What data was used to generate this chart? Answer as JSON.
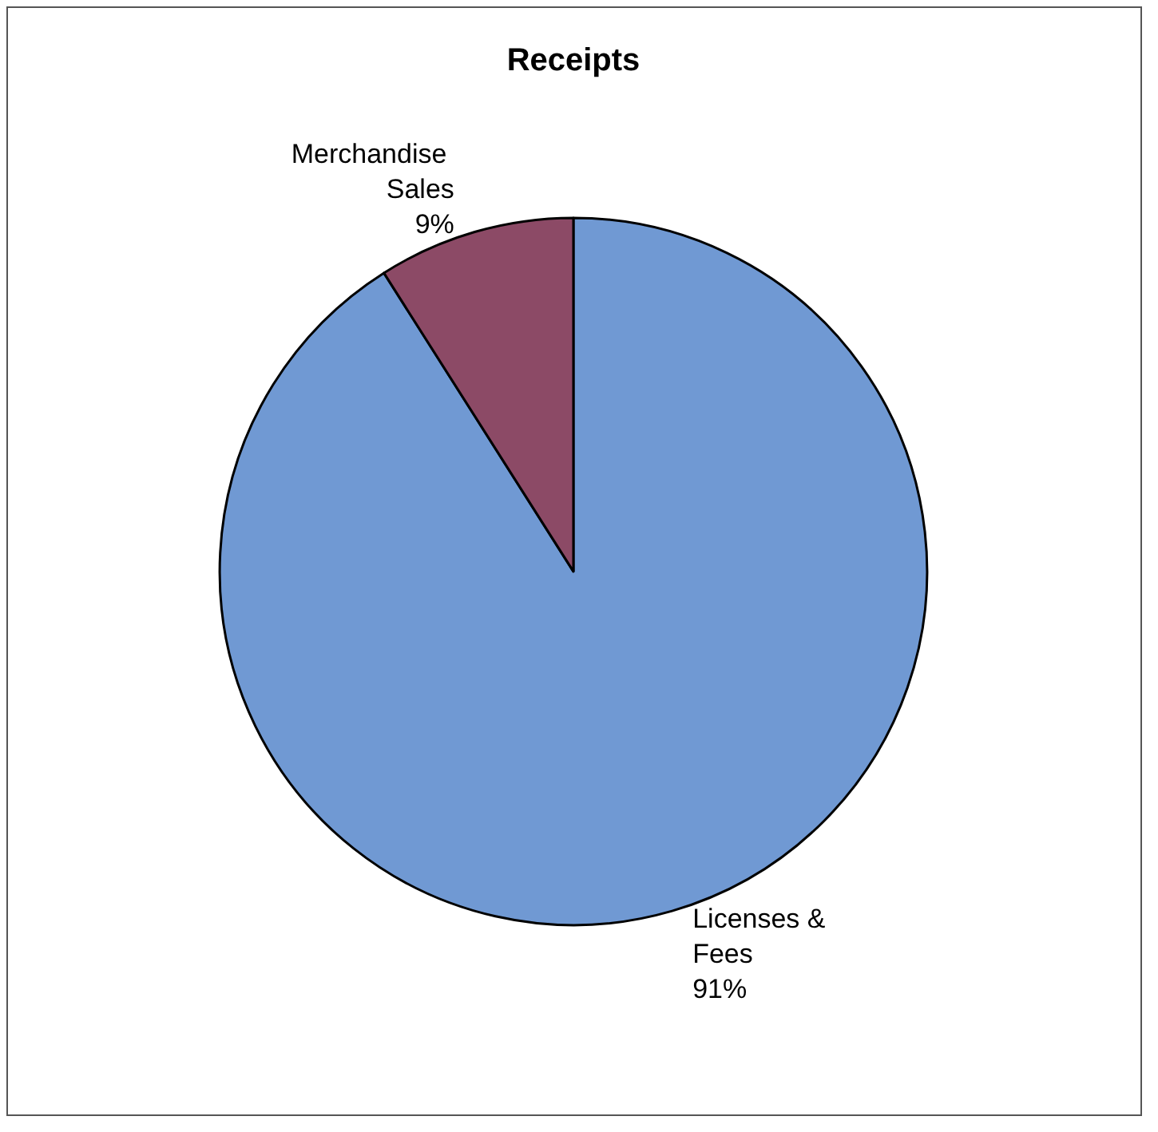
{
  "chart_data": {
    "type": "pie",
    "title": "Receipts",
    "categories": [
      "Licenses & Fees",
      "Merchandise Sales"
    ],
    "values": [
      91,
      9
    ],
    "colors": [
      "#7099d3",
      "#8c4a66"
    ],
    "value_labels": [
      "91%",
      "9%"
    ]
  }
}
